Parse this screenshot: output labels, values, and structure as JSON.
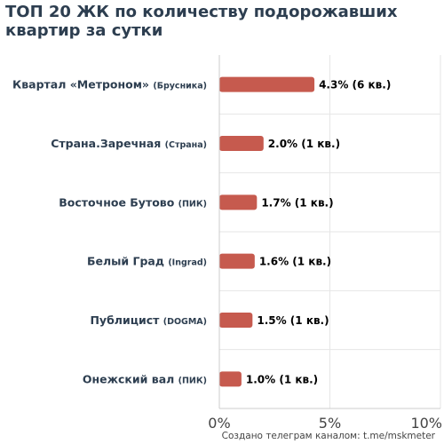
{
  "title": "ТОП 20 ЖК по количеству подорожавших\nквартир за сутки",
  "footer": "Создано телеграм каналом: t.me/mskmeter",
  "colors": {
    "bar": "#c65a4e",
    "label": "#2d3e50",
    "grid": "#e6e6e6",
    "axis": "#cccccc",
    "value_text": "#000000",
    "tick_text": "#444444"
  },
  "chart_data": {
    "type": "bar",
    "orientation": "horizontal",
    "title": "ТОП 20 ЖК по количеству подорожавших квартир за сутки",
    "categories": [
      {
        "name": "Квартал «Метроном»",
        "developer": "(Брусника)"
      },
      {
        "name": "Страна.Заречная",
        "developer": "(Страна)"
      },
      {
        "name": "Восточное Бутово",
        "developer": "(ПИК)"
      },
      {
        "name": "Белый Град",
        "developer": "(Ingrad)"
      },
      {
        "name": "Публицист",
        "developer": "(DOGMA)"
      },
      {
        "name": "Онежский вал",
        "developer": "(ПИК)"
      }
    ],
    "values": [
      4.3,
      2.0,
      1.7,
      1.6,
      1.5,
      1.0
    ],
    "value_labels": [
      "4.3% (6 кв.)",
      "2.0% (1 кв.)",
      "1.7% (1 кв.)",
      "1.6% (1 кв.)",
      "1.5% (1 кв.)",
      "1.0% (1 кв.)"
    ],
    "xlim": [
      0,
      10
    ],
    "xticks": [
      0,
      5,
      10
    ],
    "xtick_labels": [
      "0%",
      "5%",
      "10%"
    ],
    "xlabel": "",
    "ylabel": "",
    "grid": true,
    "legend": "none"
  }
}
